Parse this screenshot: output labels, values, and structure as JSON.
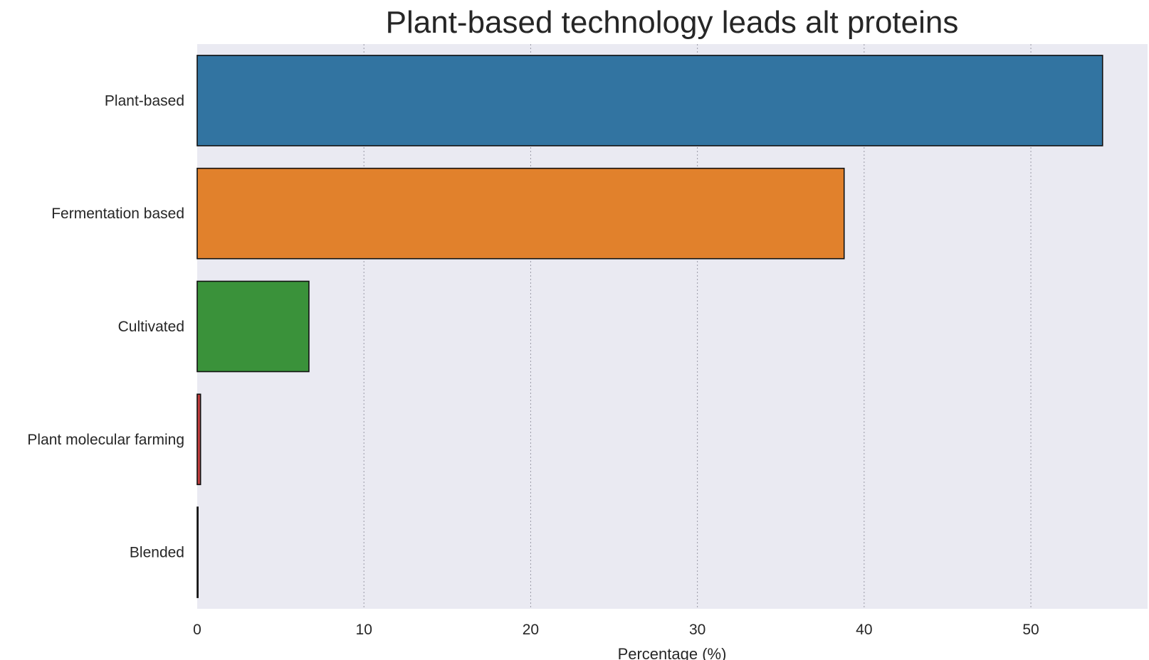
{
  "chart_data": {
    "type": "bar",
    "orientation": "horizontal",
    "title": "Plant-based technology leads alt proteins",
    "xlabel": "Percentage (%)",
    "ylabel": "",
    "categories": [
      "Plant-based",
      "Fermentation based",
      "Cultivated",
      "Plant molecular farming",
      "Blended"
    ],
    "values": [
      54.3,
      38.8,
      6.7,
      0.2,
      0.05
    ],
    "colors": [
      "#3274a1",
      "#e1812c",
      "#3a923a",
      "#c03d3e",
      "#9372b2"
    ],
    "xlim": [
      0,
      57
    ],
    "xticks": [
      "0",
      "10",
      "20",
      "30",
      "40",
      "50"
    ],
    "grid": "vertical dotted",
    "background": "#eaeaf2"
  }
}
